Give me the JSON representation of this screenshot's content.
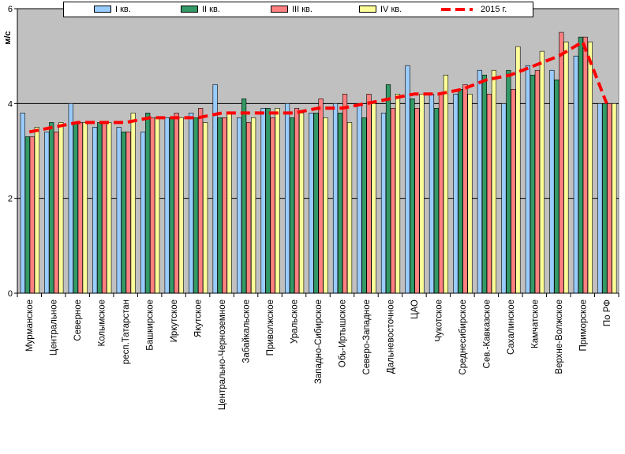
{
  "chart_data": {
    "type": "bar",
    "title": "",
    "ylabel": "м/с",
    "xlabel": "",
    "ylim": [
      0,
      6
    ],
    "yticks": [
      0,
      2,
      4,
      6
    ],
    "grid": true,
    "plot_background": "#c0c0c0",
    "categories": [
      "Мурманское",
      "Центральное",
      "Северное",
      "Колымское",
      "респ.Татарстан",
      "Башкирское",
      "Иркутское",
      "Якутское",
      "Центрально-Черноземное",
      "Забайкальское",
      "Приволжское",
      "Уральское",
      "Западно-Сибирское",
      "Обь-Иртышское",
      "Северо-Западное",
      "Дальневосточное",
      "ЦАО",
      "Чукотское",
      "Среднесибирское",
      "Сев.-Кавказское",
      "Сахалинское",
      "Камчатское",
      "Верхне-Волжское",
      "Приморское",
      "По РФ"
    ],
    "series": [
      {
        "name": "I кв.",
        "color": "#99ccff",
        "values": [
          3.8,
          3.4,
          4.0,
          3.5,
          3.5,
          3.4,
          3.7,
          3.8,
          4.4,
          3.7,
          3.9,
          4.0,
          3.8,
          4.0,
          4.0,
          3.8,
          4.8,
          4.2,
          4.2,
          4.7,
          4.0,
          4.8,
          4.7,
          5.0,
          4.0
        ]
      },
      {
        "name": "II кв.",
        "color": "#339966",
        "values": [
          3.3,
          3.6,
          3.6,
          3.6,
          3.4,
          3.8,
          3.7,
          3.7,
          3.7,
          4.1,
          3.9,
          3.7,
          3.8,
          3.8,
          3.7,
          4.4,
          4.1,
          3.9,
          4.3,
          4.6,
          4.7,
          4.6,
          4.5,
          5.4,
          4.0
        ]
      },
      {
        "name": "III кв.",
        "color": "#ff8080",
        "values": [
          3.3,
          3.4,
          3.6,
          3.6,
          3.4,
          3.7,
          3.8,
          3.9,
          3.7,
          3.6,
          3.7,
          3.9,
          4.1,
          4.2,
          4.2,
          3.9,
          3.9,
          4.2,
          4.4,
          4.2,
          4.3,
          4.7,
          5.5,
          5.4,
          4.0
        ]
      },
      {
        "name": "IV кв.",
        "color": "#ffff99",
        "values": [
          3.5,
          3.6,
          3.6,
          3.6,
          3.8,
          3.7,
          3.7,
          3.6,
          3.8,
          3.7,
          3.9,
          3.8,
          3.7,
          3.6,
          4.0,
          4.2,
          4.2,
          4.6,
          4.2,
          4.7,
          5.2,
          5.1,
          5.3,
          5.3,
          4.0
        ]
      }
    ],
    "line_series": {
      "name": "2015 г.",
      "color": "#ff0000",
      "values": [
        3.4,
        3.5,
        3.6,
        3.6,
        3.6,
        3.7,
        3.7,
        3.7,
        3.8,
        3.8,
        3.8,
        3.8,
        3.9,
        3.9,
        4.0,
        4.1,
        4.2,
        4.2,
        4.3,
        4.5,
        4.6,
        4.8,
        5.0,
        5.3,
        4.0
      ]
    }
  }
}
